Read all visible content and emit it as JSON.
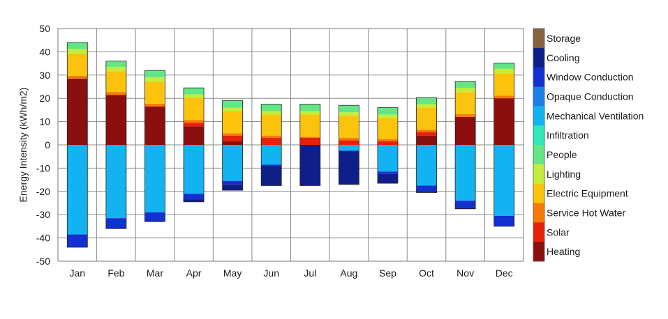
{
  "chart_data": {
    "type": "bar",
    "stacked": true,
    "title": "",
    "xlabel": "",
    "ylabel": "Energy Intensity (kWh/m2)",
    "ylim": [
      -50,
      50
    ],
    "yticks": [
      -50,
      -40,
      -30,
      -20,
      -10,
      0,
      10,
      20,
      30,
      40,
      50
    ],
    "grid": true,
    "legend_position": "right",
    "categories": [
      "Jan",
      "Feb",
      "Mar",
      "Apr",
      "May",
      "Jun",
      "Jul",
      "Aug",
      "Sep",
      "Oct",
      "Nov",
      "Dec"
    ],
    "series": [
      {
        "name": "Heating",
        "color": "#8b0f0f",
        "values": [
          28.5,
          21.5,
          16.5,
          8.0,
          1.5,
          0.0,
          0.0,
          0.0,
          0.0,
          4.0,
          12.0,
          20.0
        ]
      },
      {
        "name": "Solar",
        "color": "#e8200a",
        "values": [
          0.0,
          0.0,
          0.0,
          1.5,
          2.5,
          3.0,
          3.0,
          2.0,
          1.5,
          1.5,
          0.0,
          0.0
        ]
      },
      {
        "name": "Service Hot Water",
        "color": "#f77a05",
        "values": [
          1.2,
          1.2,
          1.2,
          1.2,
          1.0,
          1.0,
          0.5,
          1.0,
          1.0,
          1.0,
          1.2,
          1.2
        ]
      },
      {
        "name": "Electric Equipment",
        "color": "#fbc30c",
        "values": [
          9.5,
          9.0,
          9.5,
          9.5,
          9.5,
          9.0,
          9.5,
          9.5,
          9.0,
          9.5,
          9.5,
          9.5
        ]
      },
      {
        "name": "Lighting",
        "color": "#c3ed3d",
        "values": [
          2.0,
          1.8,
          1.8,
          1.5,
          1.5,
          1.5,
          1.5,
          1.5,
          1.5,
          1.5,
          1.8,
          2.0
        ]
      },
      {
        "name": "People",
        "color": "#64e686",
        "values": [
          2.8,
          2.5,
          3.0,
          2.8,
          3.0,
          3.0,
          3.0,
          3.0,
          3.0,
          2.8,
          2.8,
          2.5
        ]
      },
      {
        "name": "Infiltration",
        "color": "#2ee8b8",
        "values": [
          0.0,
          0.0,
          0.0,
          0.0,
          0.0,
          0.0,
          0.0,
          0.0,
          0.0,
          0.0,
          0.0,
          0.0
        ]
      },
      {
        "name": "Mechanical Ventilation",
        "color": "#13b3f2",
        "values": [
          -38.5,
          -31.5,
          -29.0,
          -21.0,
          -15.5,
          -8.5,
          0.0,
          -2.5,
          -11.5,
          -17.5,
          -24.0,
          -30.5
        ]
      },
      {
        "name": "Opaque Conduction",
        "color": "#1d7fe6",
        "values": [
          0.0,
          0.0,
          0.0,
          0.0,
          0.0,
          0.0,
          0.0,
          0.0,
          0.0,
          0.0,
          0.0,
          0.0
        ]
      },
      {
        "name": "Window Conduction",
        "color": "#1330d0",
        "values": [
          -5.5,
          -4.5,
          -4.0,
          -2.5,
          -1.5,
          -0.5,
          0.0,
          0.0,
          -1.0,
          -2.5,
          -3.0,
          -4.5
        ]
      },
      {
        "name": "Cooling",
        "color": "#0f1f8a",
        "values": [
          0.0,
          0.0,
          0.0,
          -1.0,
          -2.5,
          -8.5,
          -17.5,
          -14.5,
          -4.0,
          -0.5,
          -0.5,
          0.0
        ]
      },
      {
        "name": "Storage",
        "color": "#866340",
        "values": [
          0.0,
          0.0,
          0.0,
          0.0,
          0.0,
          0.0,
          0.0,
          0.0,
          0.0,
          0.0,
          0.0,
          0.0
        ]
      }
    ]
  }
}
